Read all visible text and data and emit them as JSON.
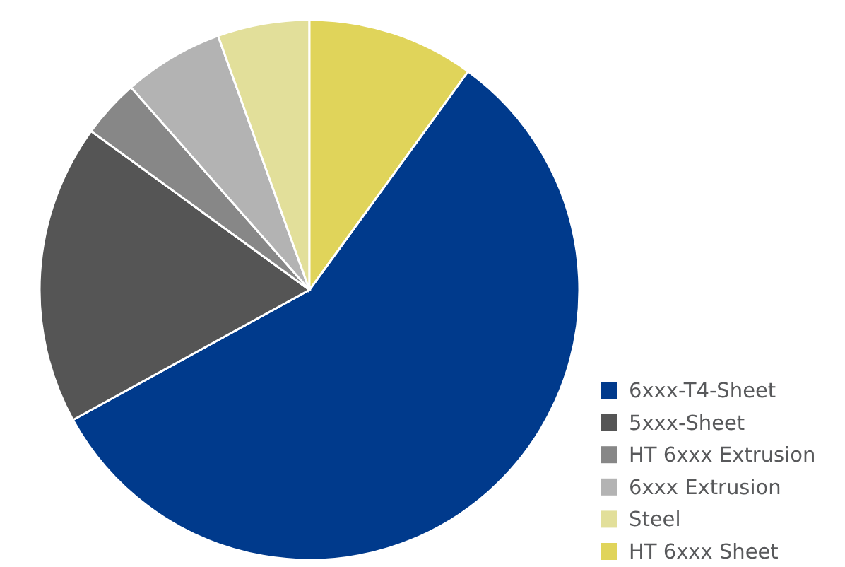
{
  "chart_data": {
    "type": "pie",
    "categories": [
      "6xxx-T4-Sheet",
      "5xxx-Sheet",
      "HT 6xxx Extrusion",
      "6xxx Extrusion",
      "Steel",
      "HT 6xxx Sheet"
    ],
    "values": [
      57,
      18,
      3.5,
      6,
      5.5,
      10
    ],
    "colors": [
      "#003a8c",
      "#555555",
      "#878787",
      "#b3b3b3",
      "#e2df9a",
      "#e0d45a"
    ],
    "legend": "bottom right"
  }
}
